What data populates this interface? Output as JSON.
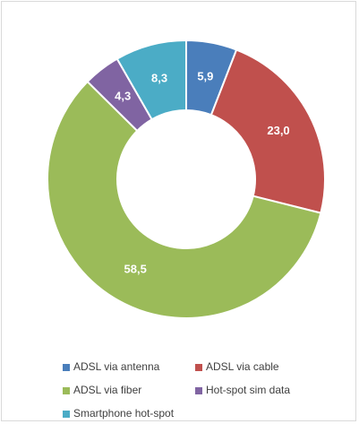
{
  "chart_data": {
    "type": "donut",
    "categories": [
      "ADSL via antenna",
      "ADSL via cable",
      "ADSL via fiber",
      "Hot-spot sim data",
      "Smartphone hot-spot"
    ],
    "values": [
      5.9,
      23.0,
      58.5,
      4.3,
      8.3
    ],
    "value_labels": [
      "5,9",
      "23,0",
      "58,5",
      "4,3",
      "8,3"
    ],
    "colors": [
      "#4a7ebb",
      "#c0504d",
      "#9bbb59",
      "#8064a2",
      "#4bacc6"
    ],
    "legend": "bottom"
  }
}
